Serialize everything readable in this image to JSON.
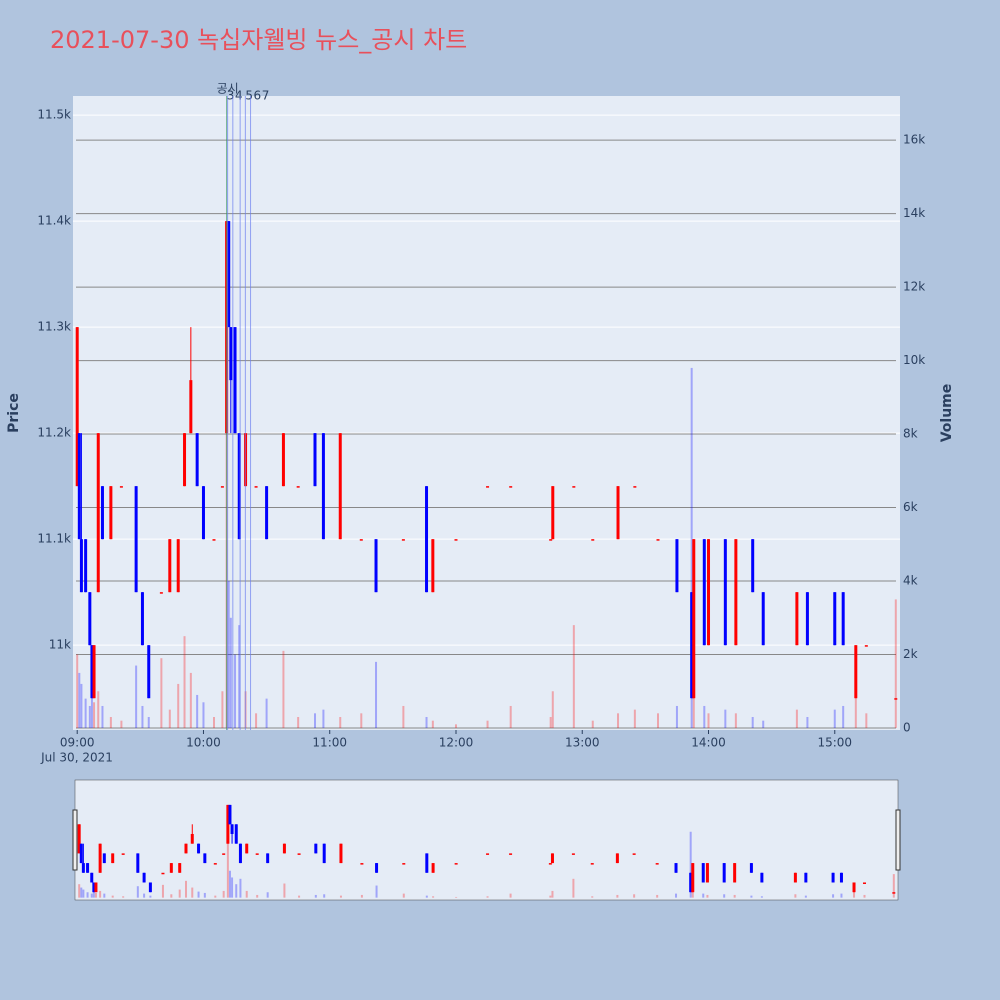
{
  "chart_data": {
    "type": "candlestick",
    "title": "2021-07-30 녹십자웰빙 뉴스_공시 차트",
    "y_label": "Price",
    "y2_label": "Volume",
    "x_date_label": "Jul 30, 2021",
    "increasing_color": "#ff0000",
    "decreasing_color": "#0000ff",
    "xlim": [
      "08:58",
      "15:31"
    ],
    "xticks": [
      "09:00",
      "10:00",
      "11:00",
      "12:00",
      "13:00",
      "14:00",
      "15:00"
    ],
    "ylim": [
      10920,
      11518
    ],
    "yticks": [
      {
        "value": 11000,
        "label": "11k"
      },
      {
        "value": 11100,
        "label": "11.1k"
      },
      {
        "value": 11200,
        "label": "11.2k"
      },
      {
        "value": 11300,
        "label": "11.3k"
      },
      {
        "value": 11400,
        "label": "11.4k"
      },
      {
        "value": 11500,
        "label": "11.5k"
      }
    ],
    "y2lim": [
      -54,
      17200
    ],
    "y2ticks": [
      0,
      {
        "value": 2000,
        "label": "2k"
      },
      {
        "value": 4000,
        "label": "4k"
      },
      {
        "value": 6000,
        "label": "6k"
      },
      {
        "value": 8000,
        "label": "8k"
      },
      {
        "value": 10000,
        "label": "10k"
      },
      {
        "value": 12000,
        "label": "12k"
      },
      {
        "value": 14000,
        "label": "14k"
      },
      {
        "value": 16000,
        "label": "16k"
      }
    ],
    "events": [
      {
        "x": "10:11",
        "label": "공시"
      },
      {
        "x": "10:11",
        "label": "3"
      },
      {
        "x": "10:13",
        "label": "4"
      },
      {
        "x": "10:16",
        "label": "5"
      },
      {
        "x": "10:18",
        "label": "6"
      },
      {
        "x": "10:20",
        "label": "7"
      }
    ],
    "x": [
      "09:00",
      "09:01",
      "09:02",
      "09:04",
      "09:06",
      "09:07",
      "09:08",
      "09:10",
      "09:12",
      "09:16",
      "09:21",
      "09:28",
      "09:31",
      "09:34",
      "09:40",
      "09:44",
      "09:48",
      "09:51",
      "09:54",
      "09:57",
      "10:00",
      "10:05",
      "10:09",
      "10:11",
      "10:12",
      "10:13",
      "10:15",
      "10:17",
      "10:20",
      "10:25",
      "10:30",
      "10:38",
      "10:45",
      "10:53",
      "10:57",
      "11:05",
      "11:15",
      "11:22",
      "11:35",
      "11:46",
      "11:49",
      "12:00",
      "12:15",
      "12:26",
      "12:45",
      "12:46",
      "12:56",
      "13:05",
      "13:17",
      "13:25",
      "13:36",
      "13:45",
      "13:52",
      "13:53",
      "13:58",
      "14:00",
      "14:08",
      "14:13",
      "14:21",
      "14:26",
      "14:42",
      "14:47",
      "15:00",
      "15:04",
      "15:10",
      "15:15",
      "15:29"
    ],
    "open": [
      11150,
      11200,
      11100,
      11100,
      11050,
      11000,
      10950,
      11050,
      11150,
      11100,
      11150,
      11150,
      11050,
      11000,
      11050,
      11050,
      11050,
      11150,
      11200,
      11200,
      11150,
      11100,
      11150,
      11200,
      11400,
      11300,
      11300,
      11200,
      11150,
      11150,
      11150,
      11150,
      11150,
      11200,
      11200,
      11100,
      11100,
      11100,
      11100,
      11150,
      11050,
      11100,
      11150,
      11150,
      11100,
      11100,
      11150,
      11100,
      11100,
      11150,
      11100,
      11100,
      11050,
      10950,
      11100,
      11000,
      11100,
      11000,
      11100,
      11050,
      11000,
      11050,
      11050,
      11050,
      10950,
      11000,
      10950
    ],
    "high": [
      11300,
      11200,
      11200,
      11100,
      11050,
      11000,
      11000,
      11200,
      11150,
      11150,
      11150,
      11150,
      11050,
      11000,
      11050,
      11100,
      11100,
      11200,
      11300,
      11200,
      11150,
      11100,
      11150,
      11400,
      11400,
      11300,
      11300,
      11200,
      11200,
      11150,
      11150,
      11200,
      11150,
      11200,
      11200,
      11200,
      11100,
      11100,
      11100,
      11150,
      11100,
      11100,
      11150,
      11150,
      11100,
      11150,
      11150,
      11100,
      11150,
      11150,
      11100,
      11100,
      11050,
      11100,
      11100,
      11100,
      11100,
      11100,
      11100,
      11050,
      11050,
      11050,
      11050,
      11050,
      11000,
      11000,
      10950
    ],
    "low": [
      11150,
      11100,
      11050,
      11050,
      11000,
      10950,
      10950,
      11050,
      11100,
      11100,
      11150,
      11050,
      11000,
      10950,
      11050,
      11050,
      11050,
      11150,
      11200,
      11150,
      11100,
      11100,
      11150,
      11200,
      11300,
      11200,
      11200,
      11100,
      11150,
      11150,
      11100,
      11150,
      11150,
      11150,
      11100,
      11100,
      11100,
      11050,
      11100,
      11050,
      11050,
      11100,
      11150,
      11150,
      11100,
      11100,
      11150,
      11100,
      11100,
      11150,
      11100,
      11050,
      10950,
      10950,
      11000,
      11000,
      11000,
      11000,
      11050,
      11000,
      11000,
      11000,
      11000,
      11000,
      10950,
      11000,
      10950
    ],
    "close": [
      11300,
      11100,
      11050,
      11050,
      11000,
      10950,
      11000,
      11200,
      11100,
      11150,
      11150,
      11050,
      11000,
      10950,
      11050,
      11100,
      11100,
      11200,
      11250,
      11150,
      11100,
      11100,
      11150,
      11400,
      11300,
      11250,
      11200,
      11100,
      11200,
      11150,
      11100,
      11200,
      11150,
      11150,
      11100,
      11200,
      11100,
      11050,
      11100,
      11050,
      11100,
      11100,
      11150,
      11150,
      11100,
      11150,
      11150,
      11100,
      11150,
      11150,
      11100,
      11050,
      10950,
      11100,
      11000,
      11100,
      11000,
      11100,
      11050,
      11000,
      11050,
      11000,
      11000,
      11000,
      11000,
      11000,
      10950
    ],
    "volume": [
      2000,
      1500,
      1200,
      800,
      600,
      900,
      700,
      1000,
      600,
      300,
      200,
      1700,
      600,
      300,
      1900,
      500,
      1200,
      2500,
      1500,
      900,
      700,
      300,
      1000,
      12500,
      4000,
      3000,
      2000,
      2800,
      1000,
      400,
      800,
      2100,
      300,
      400,
      500,
      300,
      400,
      1800,
      600,
      300,
      200,
      100,
      200,
      600,
      300,
      1000,
      2800,
      200,
      400,
      500,
      400,
      600,
      9800,
      1200,
      600,
      400,
      500,
      400,
      300,
      200,
      500,
      300,
      500,
      600,
      900,
      400,
      3500
    ]
  }
}
